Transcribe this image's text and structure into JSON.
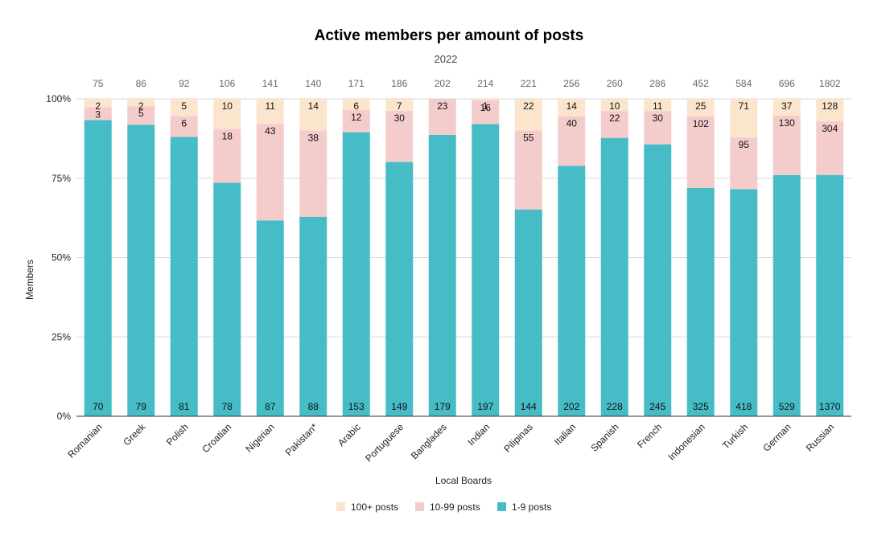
{
  "chart_data": {
    "type": "bar",
    "stacked": "percent",
    "title": "Active members per amount of posts",
    "subtitle": "2022",
    "xlabel": "Local Boards",
    "ylabel": "Members",
    "ylim": [
      0,
      100
    ],
    "yticks": [
      "0%",
      "25%",
      "50%",
      "75%",
      "100%"
    ],
    "grid": true,
    "legend_position": "bottom",
    "categories": [
      "Romanian",
      "Greek",
      "Polish",
      "Croatian",
      "Nigerian",
      "Pakistan*",
      "Arabic",
      "Portuguese",
      "Banglades",
      "Indian",
      "Pilipinas",
      "Italian",
      "Spanish",
      "French",
      "Indonesian",
      "Turkish",
      "German",
      "Russian"
    ],
    "totals": [
      "75",
      "86",
      "92",
      "106",
      "141",
      "140",
      "171",
      "186",
      "202",
      "214",
      "221",
      "256",
      "260",
      "286",
      "452",
      "584",
      "696",
      "1802"
    ],
    "series": [
      {
        "name": "1-9 posts",
        "color": "#46bdc6",
        "values": [
          70,
          79,
          81,
          78,
          87,
          88,
          153,
          149,
          179,
          197,
          144,
          202,
          228,
          245,
          325,
          418,
          529,
          1370
        ]
      },
      {
        "name": "10-99 posts",
        "color": "#f4cccc",
        "values": [
          3,
          5,
          6,
          18,
          43,
          38,
          12,
          30,
          23,
          16,
          55,
          40,
          22,
          30,
          102,
          95,
          130,
          304
        ]
      },
      {
        "name": "100+ posts",
        "color": "#fce5cd",
        "values": [
          2,
          2,
          5,
          10,
          11,
          14,
          6,
          7,
          null,
          1,
          22,
          14,
          10,
          11,
          25,
          71,
          37,
          128
        ]
      }
    ],
    "legend_order": [
      "100+ posts",
      "10-99 posts",
      "1-9 posts"
    ]
  }
}
